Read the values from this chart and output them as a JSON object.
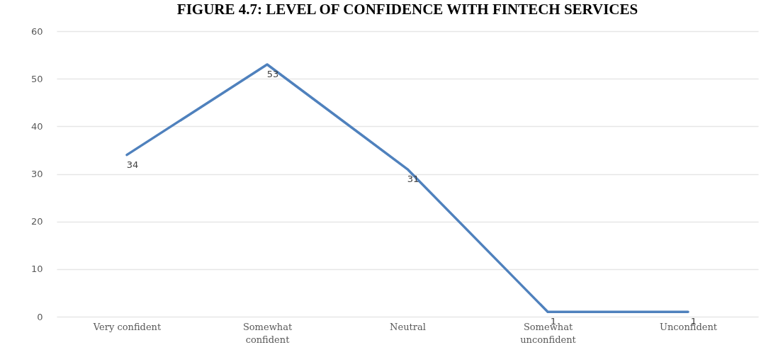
{
  "chart_data": {
    "type": "line",
    "title": "FIGURE 4.7: LEVEL OF CONFIDENCE WITH FINTECH SERVICES",
    "categories": [
      "Very confident",
      "Somewhat confident",
      "Neutral",
      "Somewhat unconfident",
      "Unconfident"
    ],
    "series": [
      {
        "color": "#4f81bd",
        "values": [
          34,
          53,
          31,
          1,
          1
        ]
      }
    ],
    "data_labels": true,
    "ylim": [
      0,
      60
    ],
    "yticks": [
      0,
      10,
      20,
      30,
      40,
      50,
      60
    ],
    "grid": "y",
    "legend": false,
    "marker": "none",
    "line_style": "solid"
  }
}
